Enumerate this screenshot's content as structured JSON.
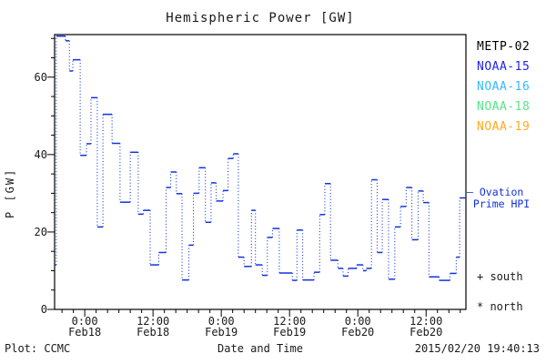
{
  "title": "Hemispheric Power [GW]",
  "footer": {
    "plot_credit": "Plot: CCMC",
    "xaxis_title": "Date and Time",
    "timestamp": "2015/02/20 19:40:13"
  },
  "legend": {
    "satellites": [
      {
        "label": "METP-02",
        "color": "#000000"
      },
      {
        "label": "NOAA-15",
        "color": "#2222ee"
      },
      {
        "label": "NOAA-16",
        "color": "#33bbff"
      },
      {
        "label": "NOAA-18",
        "color": "#55e688"
      },
      {
        "label": "NOAA-19",
        "color": "#ffaa22"
      }
    ],
    "series_label_line1": "— Ovation",
    "series_label_line2": "Prime HPI",
    "series_label_color": "#1133dd",
    "south_marker": "+ south",
    "north_marker": "* north"
  },
  "chart_data": {
    "type": "line",
    "style": "stair-step: solid horizontal segments joined by dotted vertical connectors",
    "title": "Hemispheric Power [GW]",
    "xlabel": "Date and Time",
    "ylabel": "P [GW]",
    "ylim": [
      0,
      71
    ],
    "y_major_ticks": [
      0,
      20,
      40,
      60
    ],
    "y_minor_step": 5,
    "x_hours_domain": [
      -5.3,
      67.0
    ],
    "x_hours_epoch": "hours relative to 2015-02-18 00:00",
    "x_minor_step_hours": 2,
    "x_major_ticks": [
      {
        "h": 0,
        "time": "0:00",
        "date": "Feb18"
      },
      {
        "h": 12,
        "time": "12:00",
        "date": "Feb18"
      },
      {
        "h": 24,
        "time": "0:00",
        "date": "Feb19"
      },
      {
        "h": 36,
        "time": "12:00",
        "date": "Feb19"
      },
      {
        "h": 48,
        "time": "0:00",
        "date": "Feb20"
      },
      {
        "h": 60,
        "time": "12:00",
        "date": "Feb20"
      }
    ],
    "grid": false,
    "legend_position": "outside-right",
    "line_color": "#1133dd",
    "series": [
      {
        "name": "Ovation Prime HPI",
        "units": "GW",
        "end_t_hours": 67.0,
        "steps_t_hours_value_gw": [
          [
            -5.3,
            11.5
          ],
          [
            -5.0,
            70.6
          ],
          [
            -3.4,
            69.4
          ],
          [
            -2.7,
            61.6
          ],
          [
            -2.1,
            64.5
          ],
          [
            -0.8,
            39.8
          ],
          [
            0.3,
            42.8
          ],
          [
            1.1,
            54.7
          ],
          [
            2.2,
            21.3
          ],
          [
            3.2,
            50.4
          ],
          [
            4.8,
            42.9
          ],
          [
            6.2,
            27.7
          ],
          [
            8.0,
            40.6
          ],
          [
            9.4,
            24.6
          ],
          [
            10.3,
            25.6
          ],
          [
            11.5,
            11.5
          ],
          [
            13.0,
            14.7
          ],
          [
            14.3,
            31.5
          ],
          [
            15.1,
            35.5
          ],
          [
            16.1,
            29.9
          ],
          [
            17.1,
            7.6
          ],
          [
            18.3,
            16.6
          ],
          [
            19.1,
            30.0
          ],
          [
            20.1,
            36.6
          ],
          [
            21.2,
            22.5
          ],
          [
            22.2,
            32.7
          ],
          [
            23.1,
            28.0
          ],
          [
            24.3,
            30.7
          ],
          [
            25.2,
            39.0
          ],
          [
            26.1,
            40.2
          ],
          [
            27.0,
            13.5
          ],
          [
            28.0,
            11.1
          ],
          [
            29.3,
            25.6
          ],
          [
            30.0,
            11.5
          ],
          [
            31.2,
            8.8
          ],
          [
            32.1,
            18.6
          ],
          [
            33.0,
            20.9
          ],
          [
            34.2,
            9.4
          ],
          [
            36.5,
            7.5
          ],
          [
            37.3,
            20.5
          ],
          [
            38.3,
            7.6
          ],
          [
            40.3,
            9.6
          ],
          [
            41.3,
            24.5
          ],
          [
            42.2,
            32.5
          ],
          [
            43.2,
            12.7
          ],
          [
            44.5,
            10.6
          ],
          [
            45.4,
            8.6
          ],
          [
            46.3,
            10.6
          ],
          [
            47.8,
            11.5
          ],
          [
            48.9,
            10.0
          ],
          [
            49.5,
            10.6
          ],
          [
            50.4,
            33.5
          ],
          [
            51.4,
            14.7
          ],
          [
            52.3,
            28.4
          ],
          [
            53.4,
            7.8
          ],
          [
            54.5,
            21.3
          ],
          [
            55.5,
            26.6
          ],
          [
            56.5,
            31.5
          ],
          [
            57.5,
            18.0
          ],
          [
            58.6,
            30.6
          ],
          [
            59.5,
            27.6
          ],
          [
            60.5,
            8.4
          ],
          [
            62.3,
            7.5
          ],
          [
            64.2,
            9.3
          ],
          [
            65.3,
            13.5
          ],
          [
            65.9,
            28.8
          ]
        ]
      }
    ]
  }
}
